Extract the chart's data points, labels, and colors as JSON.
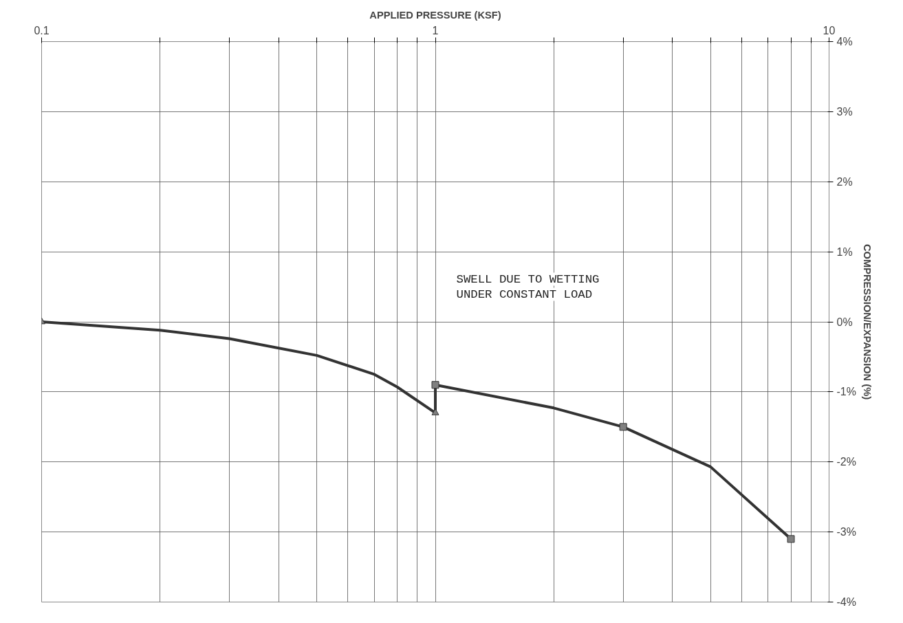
{
  "chart_data": {
    "type": "line",
    "xlabel": "APPLIED PRESSURE (KSF)",
    "ylabel": "COMPRESSION/EXPANSION (%)",
    "annotations": [
      "SWELL DUE TO WETTING",
      "UNDER CONSTANT LOAD"
    ],
    "series": [
      {
        "color": "#333333",
        "marker": "none",
        "x": [
          0.1,
          0.2,
          0.3,
          0.5,
          0.7,
          0.8,
          1,
          1,
          2,
          3,
          5,
          8
        ],
        "values": [
          0,
          -0.12,
          -0.24,
          -0.48,
          -0.75,
          -0.93,
          -1.3,
          -0.9,
          -1.23,
          -1.5,
          -2.07,
          -3.1
        ]
      },
      {
        "type": "scatter",
        "color": "#808080",
        "marker": "triangle",
        "x": [
          0.1,
          1
        ],
        "values": [
          0,
          -1.3
        ]
      },
      {
        "type": "scatter",
        "color": "#808080",
        "marker": "square",
        "x": [
          1,
          3,
          8
        ],
        "values": [
          -0.9,
          -1.5,
          -3.1
        ]
      }
    ],
    "log": "x",
    "grid": true,
    "xlim": [
      0.1,
      10
    ],
    "ylim": [
      -4,
      4
    ],
    "xticks": [
      0.1,
      {
        "value": 0.2,
        "label": null
      },
      {
        "value": 0.3,
        "label": null
      },
      {
        "value": 0.4,
        "label": null
      },
      {
        "value": 0.5,
        "label": null
      },
      {
        "value": 0.6,
        "label": null
      },
      {
        "value": 0.7,
        "label": null
      },
      {
        "value": 0.8,
        "label": null
      },
      {
        "value": 0.9,
        "label": null
      },
      1,
      {
        "value": 2,
        "label": null
      },
      {
        "value": 3,
        "label": null
      },
      {
        "value": 4,
        "label": null
      },
      {
        "value": 5,
        "label": null
      },
      {
        "value": 6,
        "label": null
      },
      {
        "value": 7,
        "label": null
      },
      {
        "value": 8,
        "label": null
      },
      {
        "value": 9,
        "label": null
      },
      10
    ],
    "yticks": [
      {
        "value": -4,
        "label": "-4%"
      },
      {
        "value": -3,
        "label": "-3%"
      },
      {
        "value": -2,
        "label": "-2%"
      },
      {
        "value": -1,
        "label": "-1%"
      },
      {
        "value": 0,
        "label": "0%"
      },
      {
        "value": 1,
        "label": "1%"
      },
      {
        "value": 2,
        "label": "2%"
      },
      {
        "value": 3,
        "label": "3%"
      },
      {
        "value": 4,
        "label": "4%"
      }
    ]
  }
}
